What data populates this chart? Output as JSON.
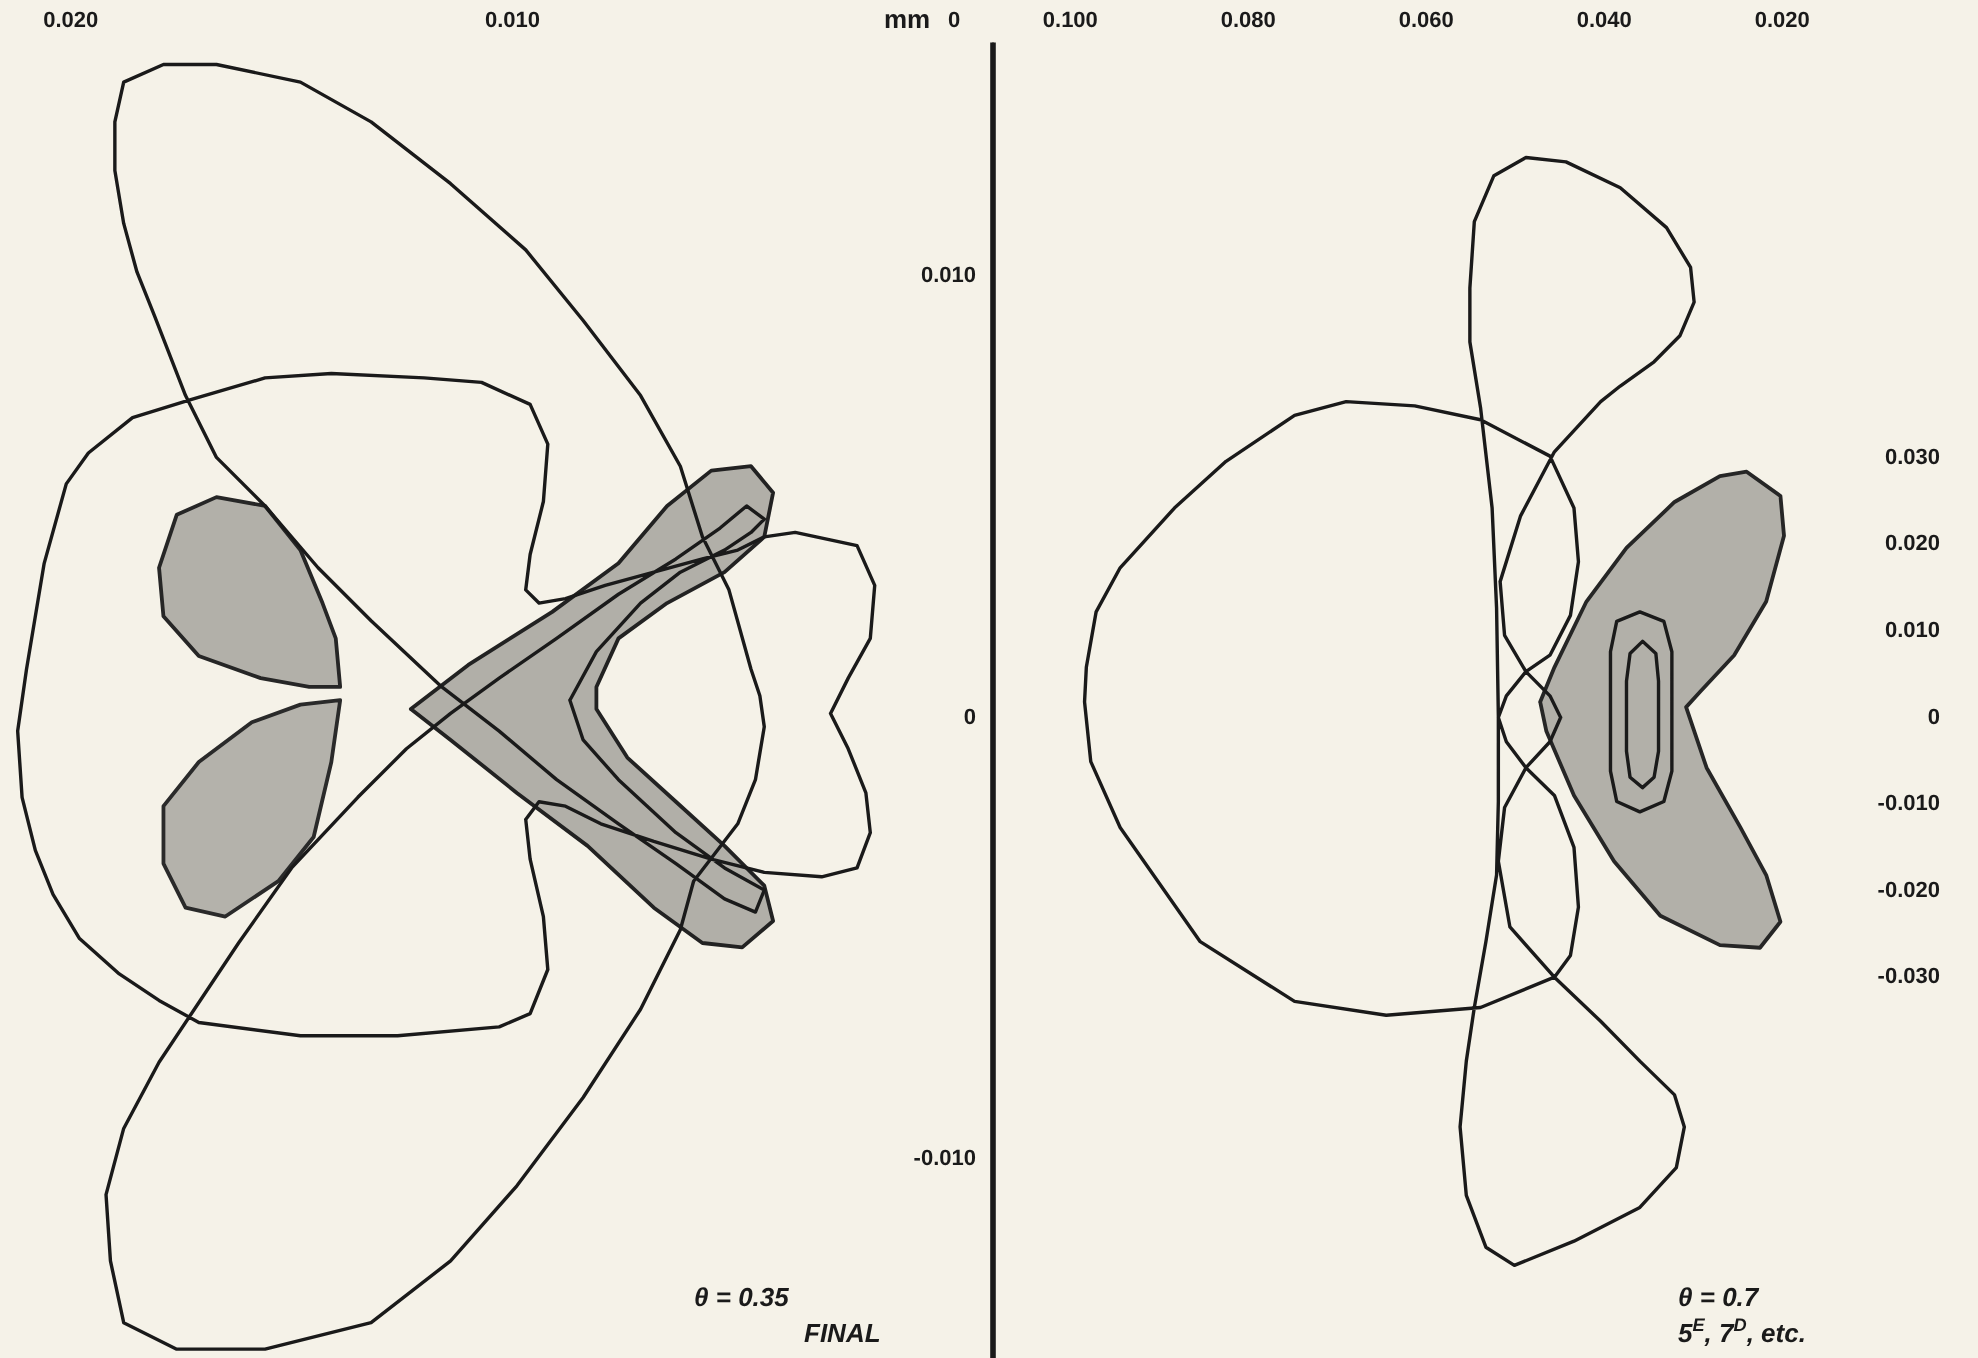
{
  "chart_data": [
    {
      "type": "line",
      "xlabel": "mm",
      "xlim": [
        0.0216,
        -0.0009
      ],
      "ylim": [
        -0.0145,
        0.0153
      ],
      "xticks": [
        {
          "value": 0.02,
          "label": "0.020"
        },
        {
          "value": 0.01,
          "label": "0.010"
        },
        0
      ],
      "yticks": [
        {
          "value": 0.01,
          "label": "0.010"
        },
        0,
        {
          "value": -0.01,
          "label": "-0.010"
        }
      ],
      "annotations": [
        "θ = 0.35",
        "FINAL"
      ],
      "series": [
        {
          "type": "line",
          "color": "#1a1a1a",
          "x": [
            0.0043,
            0.0044,
            0.0046,
            0.0051,
            0.0057,
            0.0062,
            0.0071,
            0.0084,
            0.0097,
            0.0114,
            0.0132,
            0.0148,
            0.0167,
            0.0179,
            0.0188,
            0.019,
            null,
            0.019,
            0.019,
            0.0188,
            0.0185,
            0.0181,
            0.0174,
            0.0167,
            0.0156,
            0.0144,
            0.0132,
            0.0116,
            0.0103,
            0.009,
            0.0076,
            0.0063,
            0.0052,
            0.0045,
            0.0043,
            null,
            0.0043,
            0.0052,
            0.0063,
            0.0076,
            0.0084,
            0.0087,
            null,
            0.0087,
            0.0081,
            0.0071,
            0.0062,
            0.0052,
            0.0046,
            0.0043,
            null,
            0.0043,
            0.0047,
            0.0053,
            0.0063,
            0.0076,
            0.009,
            0.0103,
            0.0114,
            0.0124,
            0.0135,
            0.015,
            0.0162,
            0.0172,
            0.018,
            0.0188,
            0.0192,
            null,
            0.0192,
            0.0191,
            0.0188,
            0.0176,
            0.0156,
            0.0132,
            0.0114,
            0.0099,
            0.0084,
            0.0071,
            0.0062,
            0.0059,
            0.0049,
            0.0045,
            0.0043,
            null,
            0.0097,
            0.0094,
            0.0088,
            0.0079,
            0.0068,
            0.0057,
            0.0049,
            0.0043,
            0.0036,
            0.0022,
            0.0018,
            null,
            0.0018,
            0.0019,
            0.0024,
            0.0028,
            null,
            0.0028,
            0.0024,
            0.002,
            0.0019,
            null,
            0.0019,
            0.0022,
            0.003,
            0.0043,
            0.0055,
            0.0068,
            0.008,
            0.0088,
            0.0094,
            0.0097,
            null,
            0.0097,
            0.0096,
            0.0093,
            0.0092,
            null,
            0.0092,
            0.0096,
            0.0103,
            0.0126,
            0.0148,
            0.0171,
            0.018,
            0.0189,
            0.0198,
            0.0204,
            0.0208,
            0.0211,
            0.0212,
            null,
            0.0212,
            0.021,
            0.0206,
            0.0201,
            0.0196,
            0.0186,
            0.0173,
            0.0156,
            0.0141,
            0.012,
            0.0107,
            0.0096,
            0.0092,
            null,
            0.0092,
            0.0093,
            0.0096,
            0.0097
          ],
          "values": [
            -0.0002,
            0.0005,
            0.0011,
            0.0029,
            0.0041,
            0.0057,
            0.0073,
            0.009,
            0.0106,
            0.0121,
            0.0135,
            0.0144,
            0.0148,
            0.0148,
            0.0144,
            0.0135,
            null,
            0.0135,
            0.0124,
            0.0112,
            0.0101,
            0.0091,
            0.0073,
            0.0059,
            0.0048,
            0.0034,
            0.0022,
            0.0007,
            -0.0003,
            -0.0014,
            -0.0024,
            -0.0033,
            -0.0041,
            -0.0044,
            -0.0039,
            null,
            -0.0039,
            -0.0034,
            -0.0026,
            -0.0014,
            -0.0005,
            0.0004,
            null,
            0.0004,
            0.0015,
            0.0026,
            0.0033,
            0.0038,
            0.0042,
            0.0045,
            null,
            0.0045,
            0.0048,
            0.0043,
            0.0036,
            0.0028,
            0.0018,
            0.0009,
            0.0001,
            -0.0007,
            -0.0018,
            -0.0034,
            -0.0051,
            -0.0066,
            -0.0078,
            -0.0093,
            -0.0108,
            null,
            -0.0108,
            -0.0123,
            -0.0137,
            -0.0143,
            -0.0143,
            -0.0137,
            -0.0123,
            -0.0106,
            -0.0086,
            -0.0066,
            -0.0048,
            -0.0037,
            -0.0024,
            -0.0014,
            -0.0002,
            null,
            0.0029,
            0.0026,
            0.0027,
            0.003,
            0.0033,
            0.0036,
            0.0038,
            0.0041,
            0.0042,
            0.0039,
            0.003,
            null,
            0.003,
            0.0018,
            0.0009,
            0.0001,
            null,
            0.0001,
            -0.0007,
            -0.0017,
            -0.0026,
            null,
            -0.0026,
            -0.0034,
            -0.0036,
            -0.0035,
            -0.0032,
            -0.0028,
            -0.0024,
            -0.002,
            -0.0019,
            -0.0023,
            null,
            -0.0023,
            -0.0032,
            -0.0045,
            -0.0057,
            null,
            -0.0057,
            -0.0067,
            -0.007,
            -0.0072,
            -0.0072,
            -0.0069,
            -0.0064,
            -0.0058,
            -0.005,
            -0.004,
            -0.003,
            -0.0018,
            -0.0003,
            null,
            -0.0003,
            0.0011,
            0.0035,
            0.0053,
            0.006,
            0.0068,
            0.0072,
            0.0077,
            0.0078,
            0.0077,
            0.0076,
            0.0071,
            0.0062,
            null,
            0.0062,
            0.0049,
            0.0037,
            0.0029
          ]
        },
        {
          "type": "area",
          "color": "#262626",
          "x": [
            0.0139,
            0.014,
            0.0143,
            0.0148,
            0.0156,
            0.0167,
            0.0176,
            0.018,
            0.0179,
            0.0171,
            0.0157,
            0.0146,
            0.0139
          ],
          "values": [
            0.0007,
            0.0018,
            0.0026,
            0.0038,
            0.0048,
            0.005,
            0.0046,
            0.0034,
            0.0023,
            0.0014,
            0.0009,
            0.0007,
            0.0007
          ]
        },
        {
          "type": "area",
          "color": "#2a2a2a",
          "x": [
            0.0139,
            0.0141,
            0.0145,
            0.0153,
            0.0165,
            0.0174,
            0.0179,
            0.0179,
            0.0171,
            0.0159,
            0.0148,
            0.0139
          ],
          "values": [
            0.0004,
            -0.001,
            -0.0027,
            -0.0037,
            -0.0045,
            -0.0043,
            -0.0033,
            -0.002,
            -0.001,
            -0.0001,
            0.0003,
            0.0004
          ]
        },
        {
          "type": "area",
          "color": "#222222",
          "x": [
            0.0123,
            0.011,
            0.0091,
            0.0076,
            0.0065,
            0.0055,
            0.0046,
            0.0041,
            0.0043,
            0.0052,
            0.0065,
            0.0076,
            0.0081,
            0.0081,
            0.0074,
            0.0063,
            0.0052,
            0.0043,
            0.0041,
            0.0048,
            0.0057,
            0.0068,
            0.0083,
            0.0099,
            0.0114,
            0.0123
          ],
          "values": [
            0.0002,
            0.0012,
            0.0024,
            0.0035,
            0.0048,
            0.0056,
            0.0057,
            0.0051,
            0.0041,
            0.0033,
            0.0026,
            0.0018,
            0.0007,
            0.0002,
            -0.0009,
            -0.0019,
            -0.0029,
            -0.0038,
            -0.0046,
            -0.0052,
            -0.0051,
            -0.0043,
            -0.0029,
            -0.0017,
            -0.0005,
            0.0002
          ]
        }
      ]
    },
    {
      "type": "line",
      "xlim": [
        0.1088,
        -0.002
      ],
      "ylim": [
        -0.074,
        0.078
      ],
      "xticks": [
        {
          "value": 0.1,
          "label": "0.100"
        },
        {
          "value": 0.08,
          "label": "0.080"
        },
        {
          "value": 0.06,
          "label": "0.060"
        },
        {
          "value": 0.04,
          "label": "0.040"
        },
        {
          "value": 0.02,
          "label": "0.020"
        }
      ],
      "yticks": [
        {
          "value": 0.03,
          "label": "0.030"
        },
        {
          "value": 0.02,
          "label": "0.020"
        },
        {
          "value": 0.01,
          "label": "0.010"
        },
        0,
        {
          "value": -0.01,
          "label": "-0.010"
        },
        {
          "value": -0.02,
          "label": "-0.020"
        },
        {
          "value": -0.03,
          "label": "-0.030"
        }
      ],
      "annotations": [
        "θ = 0.7",
        "5$^{E}$, 7$^{D}$, etc."
      ],
      "series": [
        {
          "type": "line",
          "color": "#1a1a1a",
          "x": [
            0.0984,
            0.0982,
            0.0971,
            0.0944,
            0.0883,
            0.0825,
            0.0748,
            0.069,
            0.0613,
            0.0539,
            0.0461,
            0.0434,
            0.0429,
            null,
            0.0429,
            0.0438,
            0.0461,
            0.0488,
            0.051,
            0.0519,
            null,
            0.0519,
            0.051,
            0.0488,
            0.0456,
            0.0434,
            0.0429,
            null,
            0.0429,
            0.0438,
            0.0456,
            0.0539,
            0.0645,
            0.0748,
            0.0854,
            0.0944,
            0.0977,
            0.0984,
            null,
            0.0551,
            0.0546,
            0.0524,
            0.0488,
            0.0443,
            0.0382,
            0.033,
            0.0303,
            0.0299,
            null,
            0.0299,
            0.0315,
            0.0344,
            0.0382,
            0.0404,
            0.0456,
            0.0494,
            0.0517,
            null,
            0.0517,
            0.0512,
            0.0488,
            0.0461,
            0.0449,
            null,
            0.0449,
            0.0461,
            0.0488,
            0.0512,
            0.0519,
            null,
            0.0519,
            0.0506,
            0.0456,
            0.0404,
            0.036,
            0.0321,
            0.031,
            null,
            0.031,
            0.0319,
            0.036,
            0.0434,
            0.0501,
            0.0533,
            0.0555,
            0.0562,
            null,
            0.0562,
            0.0555,
            0.0546,
            0.0533,
            0.0521,
            0.0519,
            0.0519,
            null,
            0.0519,
            0.0521,
            0.0526,
            0.0539,
            0.0551,
            0.0551,
            null,
            0.0393,
            0.0386,
            0.036,
            0.0333,
            0.0324,
            0.0324,
            null,
            0.0324,
            0.0333,
            0.036,
            0.0386,
            0.0393,
            0.0393,
            null,
            0.0375,
            0.0371,
            0.0357,
            0.0342,
            0.0339,
            0.0339,
            null,
            0.0339,
            0.0344,
            0.0357,
            0.0371,
            0.0375,
            0.0375
          ],
          "values": [
            0.0018,
            0.0058,
            0.0122,
            0.0173,
            0.0242,
            0.0296,
            0.0349,
            0.0365,
            0.036,
            0.0344,
            0.0302,
            0.0242,
            0.018,
            null,
            0.018,
            0.0118,
            0.0072,
            0.0053,
            0.0025,
            0.0,
            null,
            0.0,
            -0.0028,
            -0.0058,
            -0.009,
            -0.015,
            -0.0219,
            null,
            -0.0219,
            -0.0275,
            -0.03,
            -0.0335,
            -0.0344,
            -0.0328,
            -0.0259,
            -0.0127,
            -0.0051,
            0.0018,
            null,
            0.0496,
            0.0573,
            0.0626,
            0.0647,
            0.0642,
            0.0612,
            0.0566,
            0.052,
            0.048,
            null,
            0.048,
            0.0441,
            0.0411,
            0.0383,
            0.0365,
            0.0307,
            0.0233,
            0.0157,
            null,
            0.0157,
            0.0095,
            0.0053,
            0.0025,
            0.0,
            null,
            0.0,
            -0.0028,
            -0.0058,
            -0.0104,
            -0.0166,
            null,
            -0.0166,
            -0.0242,
            -0.03,
            -0.0351,
            -0.0397,
            -0.0436,
            -0.0473,
            null,
            -0.0473,
            -0.052,
            -0.0566,
            -0.0605,
            -0.0633,
            -0.0612,
            -0.0552,
            -0.0473,
            null,
            -0.0473,
            -0.0397,
            -0.0335,
            -0.0259,
            -0.0182,
            -0.0097,
            0.0002,
            null,
            0.0002,
            0.0127,
            0.0242,
            0.0358,
            0.0434,
            0.0496,
            null,
            0.0076,
            0.0111,
            0.0122,
            0.0111,
            0.0076,
            -0.0062,
            null,
            -0.0062,
            -0.0097,
            -0.0109,
            -0.0097,
            -0.0062,
            0.0076,
            null,
            0.0042,
            0.0074,
            0.0088,
            0.0074,
            0.0042,
            -0.0039,
            null,
            -0.0039,
            -0.0069,
            -0.0081,
            -0.0069,
            -0.0039,
            0.0042
          ]
        },
        {
          "type": "area",
          "color": "#262626",
          "x": [
            0.0472,
            0.0456,
            0.042,
            0.0375,
            0.0321,
            0.027,
            0.024,
            0.0202,
            0.0198,
            0.0218,
            0.0254,
            0.0292,
            0.0308,
            0.0285,
            0.0247,
            0.0218,
            0.0202,
            0.0225,
            0.027,
            0.0337,
            0.0389,
            0.0434,
            0.0465,
            0.0472
          ],
          "values": [
            0.0018,
            0.0058,
            0.0134,
            0.0196,
            0.0249,
            0.0279,
            0.0284,
            0.0256,
            0.021,
            0.0134,
            0.0072,
            0.003,
            0.0012,
            -0.0058,
            -0.0127,
            -0.0182,
            -0.0236,
            -0.0266,
            -0.0263,
            -0.0229,
            -0.0166,
            -0.009,
            -0.0016,
            0.0018
          ]
        }
      ]
    }
  ]
}
